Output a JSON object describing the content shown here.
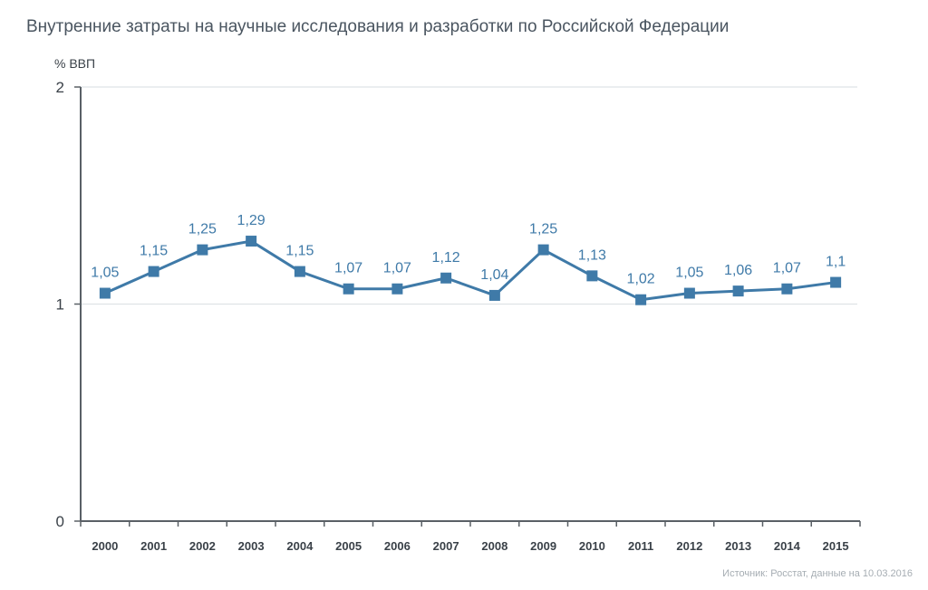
{
  "chart_data": {
    "type": "line",
    "title": "Внутренние затраты на научные исследования и разработки по Российской Федерации",
    "ylabel": "% ВВП",
    "xlabel": "",
    "categories": [
      "2000",
      "2001",
      "2002",
      "2003",
      "2004",
      "2005",
      "2006",
      "2007",
      "2008",
      "2009",
      "2010",
      "2011",
      "2012",
      "2013",
      "2014",
      "2015"
    ],
    "values": [
      1.05,
      1.15,
      1.25,
      1.29,
      1.15,
      1.07,
      1.07,
      1.12,
      1.04,
      1.25,
      1.13,
      1.02,
      1.05,
      1.06,
      1.07,
      1.1
    ],
    "data_labels": [
      "1,05",
      "1,15",
      "1,25",
      "1,29",
      "1,15",
      "1,07",
      "1,07",
      "1,12",
      "1,04",
      "1,25",
      "1,13",
      "1,02",
      "1,05",
      "1,06",
      "1,07",
      "1,1"
    ],
    "yticks": [
      0,
      1,
      2
    ],
    "ylim": [
      0,
      2
    ],
    "grid": true,
    "legend": "none",
    "colors": {
      "line": "#3f7aa8",
      "marker": "#3f7aa8",
      "grid": "#dfe3e6",
      "axis": "#5a6066"
    }
  },
  "source_note": "Источник: Росстат, данные на 10.03.2016"
}
